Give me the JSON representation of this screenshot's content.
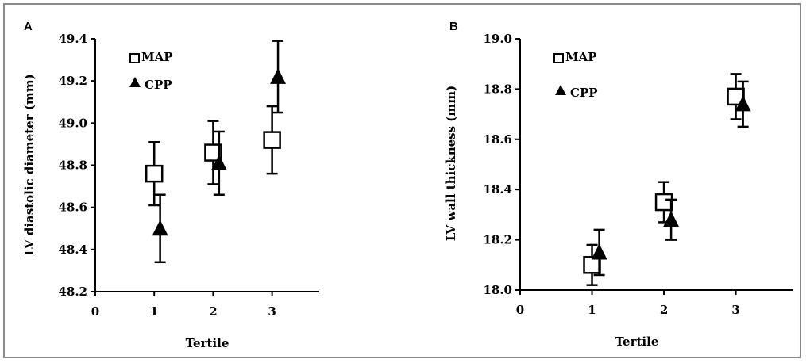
{
  "chart_data": [
    {
      "type": "scatter",
      "panel_label": "A",
      "xlabel": "Tertile",
      "ylabel": "LV diastolic diameter (mm)",
      "xlim": [
        0,
        3.8
      ],
      "ylim": [
        48.2,
        49.4
      ],
      "x_ticks": [
        "0",
        "1",
        "2",
        "3"
      ],
      "y_ticks": [
        "48.2",
        "48.4",
        "48.6",
        "48.8",
        "49.0",
        "49.2",
        "49.4"
      ],
      "legend": {
        "placement": "top-left",
        "entries": [
          "MAP",
          "CPP"
        ]
      },
      "series": [
        {
          "name": "MAP",
          "marker": "open-square",
          "x": [
            1,
            2,
            3
          ],
          "y": [
            48.76,
            48.86,
            48.92
          ],
          "err": [
            0.15,
            0.15,
            0.16
          ]
        },
        {
          "name": "CPP",
          "marker": "filled-triangle",
          "x": [
            1.1,
            2.1,
            3.1
          ],
          "y": [
            48.5,
            48.81,
            49.22
          ],
          "err": [
            0.16,
            0.15,
            0.17
          ]
        }
      ]
    },
    {
      "type": "scatter",
      "panel_label": "B",
      "xlabel": "Tertile",
      "ylabel": "LV wall thickness (mm)",
      "xlim": [
        0,
        3.8
      ],
      "ylim": [
        18.0,
        19.0
      ],
      "x_ticks": [
        "0",
        "1",
        "2",
        "3"
      ],
      "y_ticks": [
        "18.0",
        "18.2",
        "18.4",
        "18.6",
        "18.8",
        "19.0"
      ],
      "legend": {
        "placement": "top-left",
        "entries": [
          "MAP",
          "CPP"
        ]
      },
      "series": [
        {
          "name": "MAP",
          "marker": "open-square",
          "x": [
            1,
            2,
            3
          ],
          "y": [
            18.1,
            18.35,
            18.77
          ],
          "err": [
            0.08,
            0.08,
            0.09
          ]
        },
        {
          "name": "CPP",
          "marker": "filled-triangle",
          "x": [
            1.1,
            2.1,
            3.1
          ],
          "y": [
            18.15,
            18.28,
            18.74
          ],
          "err": [
            0.09,
            0.08,
            0.09
          ]
        }
      ]
    }
  ]
}
